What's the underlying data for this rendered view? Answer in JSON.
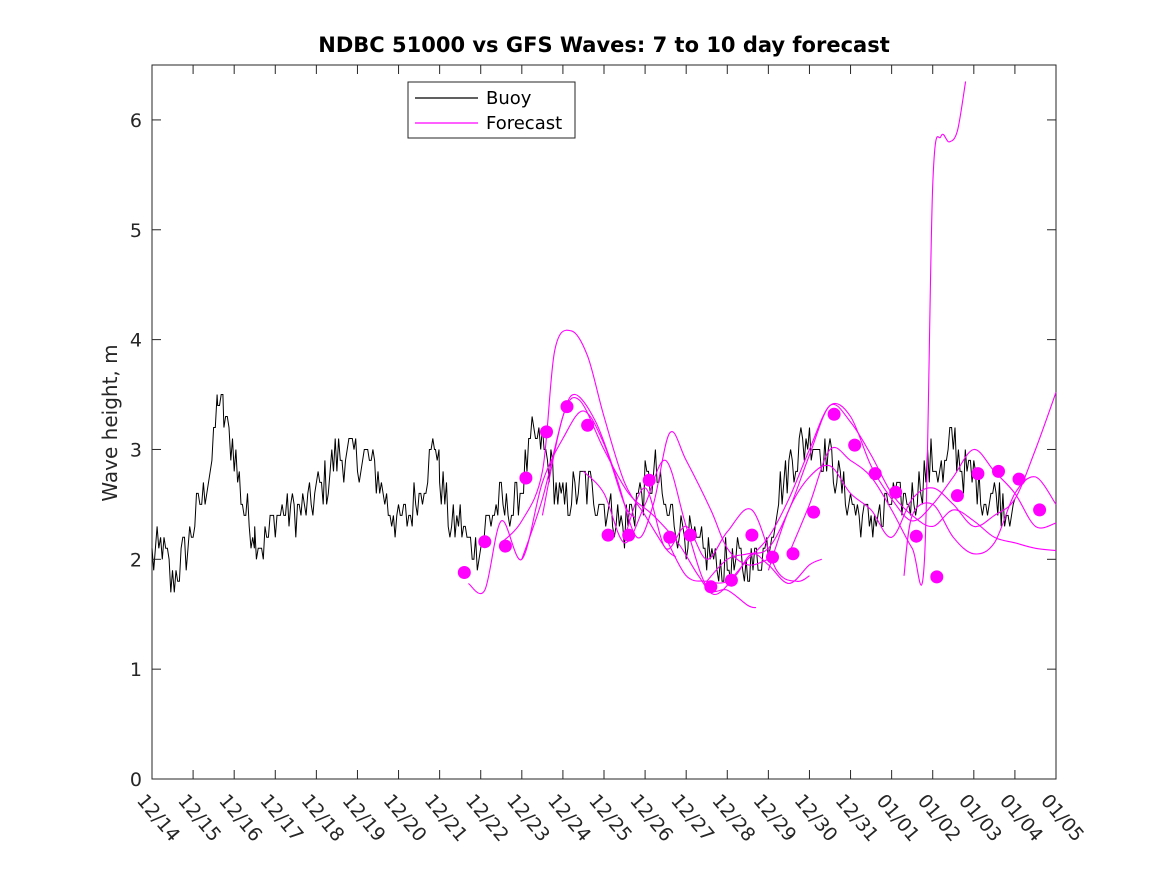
{
  "chart_data": {
    "type": "line",
    "title": "NDBC 51000 vs GFS Waves: 7 to 10 day forecast",
    "xlabel": "",
    "ylabel": "Wave height, m",
    "xlim": [
      0,
      22
    ],
    "ylim": [
      0,
      6.5
    ],
    "x_ticks": [
      0,
      1,
      2,
      3,
      4,
      5,
      6,
      7,
      8,
      9,
      10,
      11,
      12,
      13,
      14,
      15,
      16,
      17,
      18,
      19,
      20,
      21,
      22
    ],
    "x_tick_labels": [
      "12/14",
      "12/15",
      "12/16",
      "12/17",
      "12/18",
      "12/19",
      "12/20",
      "12/21",
      "12/22",
      "12/23",
      "12/24",
      "12/25",
      "12/26",
      "12/27",
      "12/28",
      "12/29",
      "12/30",
      "12/31",
      "01/01",
      "01/02",
      "01/03",
      "01/04",
      "01/05"
    ],
    "y_ticks": [
      0,
      1,
      2,
      3,
      4,
      5,
      6
    ],
    "y_tick_labels": [
      "0",
      "1",
      "2",
      "3",
      "4",
      "5",
      "6"
    ],
    "grid": false,
    "legend": {
      "position": "top-left-inside",
      "entries": [
        {
          "label": "Buoy",
          "color": "#000000"
        },
        {
          "label": "Forecast",
          "color": "#ff00ff"
        }
      ]
    },
    "colors": {
      "buoy": "#000000",
      "forecast": "#ff00ff"
    },
    "buoy_anchors": [
      [
        0,
        2.0
      ],
      [
        0.25,
        2.1
      ],
      [
        0.5,
        1.75
      ],
      [
        0.75,
        2.0
      ],
      [
        1.0,
        2.3
      ],
      [
        1.25,
        2.6
      ],
      [
        1.5,
        3.0
      ],
      [
        1.6,
        3.5
      ],
      [
        1.75,
        3.3
      ],
      [
        2.0,
        3.0
      ],
      [
        2.2,
        2.5
      ],
      [
        2.5,
        2.25
      ],
      [
        2.75,
        2.15
      ],
      [
        3.0,
        2.4
      ],
      [
        3.25,
        2.45
      ],
      [
        3.5,
        2.45
      ],
      [
        3.75,
        2.45
      ],
      [
        4.0,
        2.6
      ],
      [
        4.25,
        2.7
      ],
      [
        4.5,
        2.95
      ],
      [
        4.75,
        2.95
      ],
      [
        5.0,
        2.9
      ],
      [
        5.25,
        2.9
      ],
      [
        5.5,
        2.75
      ],
      [
        5.75,
        2.5
      ],
      [
        6.0,
        2.35
      ],
      [
        6.25,
        2.4
      ],
      [
        6.5,
        2.6
      ],
      [
        6.75,
        2.9
      ],
      [
        6.9,
        3.1
      ],
      [
        7.0,
        2.75
      ],
      [
        7.25,
        2.3
      ],
      [
        7.5,
        2.35
      ],
      [
        7.75,
        2.1
      ],
      [
        8.0,
        2.15
      ],
      [
        8.25,
        2.4
      ],
      [
        8.5,
        2.5
      ],
      [
        8.75,
        2.45
      ],
      [
        9.0,
        2.65
      ],
      [
        9.25,
        3.1
      ],
      [
        9.5,
        3.05
      ],
      [
        9.75,
        2.75
      ],
      [
        10.0,
        2.5
      ],
      [
        10.25,
        2.6
      ],
      [
        10.5,
        2.7
      ],
      [
        10.75,
        2.6
      ],
      [
        11.0,
        2.55
      ],
      [
        11.25,
        2.4
      ],
      [
        11.5,
        2.3
      ],
      [
        11.75,
        2.5
      ],
      [
        12.0,
        2.65
      ],
      [
        12.25,
        2.8
      ],
      [
        12.5,
        2.45
      ],
      [
        12.75,
        2.35
      ],
      [
        13.0,
        2.25
      ],
      [
        13.25,
        2.1
      ],
      [
        13.5,
        2.05
      ],
      [
        13.75,
        1.95
      ],
      [
        14.0,
        1.95
      ],
      [
        14.25,
        1.95
      ],
      [
        14.5,
        1.95
      ],
      [
        14.75,
        2.0
      ],
      [
        15.0,
        2.15
      ],
      [
        15.25,
        2.6
      ],
      [
        15.5,
        2.85
      ],
      [
        15.75,
        3.0
      ],
      [
        16.0,
        3.1
      ],
      [
        16.25,
        3.0
      ],
      [
        16.5,
        2.95
      ],
      [
        16.75,
        2.7
      ],
      [
        17.0,
        2.55
      ],
      [
        17.25,
        2.35
      ],
      [
        17.5,
        2.4
      ],
      [
        17.75,
        2.35
      ],
      [
        18.0,
        2.55
      ],
      [
        18.25,
        2.55
      ],
      [
        18.5,
        2.55
      ],
      [
        18.75,
        2.75
      ],
      [
        19.0,
        2.9
      ],
      [
        19.25,
        2.75
      ],
      [
        19.5,
        3.1
      ],
      [
        19.75,
        2.8
      ],
      [
        20.0,
        2.75
      ],
      [
        20.25,
        2.55
      ],
      [
        20.5,
        2.6
      ],
      [
        20.75,
        2.5
      ],
      [
        21.0,
        2.55
      ]
    ],
    "forecast_series": [
      {
        "points": [
          [
            7.7,
            1.78
          ],
          [
            8.1,
            1.72
          ],
          [
            8.5,
            2.35
          ],
          [
            9.0,
            2.0
          ],
          [
            9.5,
            2.7
          ],
          [
            10.0,
            3.1
          ],
          [
            10.5,
            3.35
          ],
          [
            11.0,
            3.05
          ],
          [
            11.5,
            2.5
          ],
          [
            11.75,
            2.38
          ]
        ]
      },
      {
        "points": [
          [
            8.5,
            2.15
          ],
          [
            9.0,
            2.35
          ],
          [
            9.5,
            2.8
          ],
          [
            9.8,
            3.9
          ],
          [
            10.2,
            4.08
          ],
          [
            10.6,
            3.85
          ],
          [
            11.0,
            3.3
          ],
          [
            11.5,
            2.7
          ],
          [
            12.0,
            2.4
          ],
          [
            12.5,
            2.1
          ],
          [
            12.75,
            2.02
          ]
        ]
      },
      {
        "points": [
          [
            9.0,
            2.0
          ],
          [
            9.5,
            2.55
          ],
          [
            10.0,
            3.3
          ],
          [
            10.3,
            3.5
          ],
          [
            10.8,
            3.25
          ],
          [
            11.3,
            2.75
          ],
          [
            11.8,
            2.2
          ],
          [
            12.2,
            2.5
          ],
          [
            12.6,
            3.15
          ],
          [
            13.0,
            2.9
          ],
          [
            13.6,
            2.45
          ],
          [
            14.0,
            2.1
          ],
          [
            14.5,
            1.95
          ],
          [
            15.0,
            2.0
          ]
        ]
      },
      {
        "points": [
          [
            9.5,
            2.4
          ],
          [
            10.0,
            3.3
          ],
          [
            10.4,
            3.45
          ],
          [
            11.0,
            3.0
          ],
          [
            11.6,
            2.6
          ],
          [
            12.2,
            2.4
          ],
          [
            12.8,
            2.15
          ],
          [
            13.3,
            1.85
          ],
          [
            13.7,
            1.68
          ],
          [
            14.2,
            1.85
          ],
          [
            14.6,
            2.05
          ],
          [
            15.0,
            1.95
          ],
          [
            15.5,
            1.78
          ],
          [
            16.0,
            1.95
          ],
          [
            16.3,
            2.0
          ]
        ]
      },
      {
        "points": [
          [
            10.5,
            2.8
          ],
          [
            11.0,
            2.6
          ],
          [
            11.5,
            2.15
          ],
          [
            12.0,
            2.5
          ],
          [
            12.5,
            2.9
          ],
          [
            13.0,
            2.3
          ],
          [
            13.5,
            1.75
          ],
          [
            14.0,
            1.72
          ],
          [
            14.5,
            1.58
          ],
          [
            14.7,
            1.56
          ]
        ]
      },
      {
        "points": [
          [
            11.5,
            2.2
          ],
          [
            12.0,
            2.65
          ],
          [
            12.5,
            2.1
          ],
          [
            13.0,
            2.3
          ],
          [
            13.5,
            2.0
          ],
          [
            14.0,
            2.25
          ],
          [
            14.6,
            2.45
          ],
          [
            15.2,
            1.9
          ],
          [
            15.7,
            1.8
          ],
          [
            16.0,
            1.85
          ]
        ]
      },
      {
        "points": [
          [
            12.5,
            2.2
          ],
          [
            13.0,
            1.85
          ],
          [
            13.5,
            1.8
          ],
          [
            14.0,
            1.8
          ],
          [
            14.5,
            2.0
          ],
          [
            15.0,
            2.2
          ],
          [
            15.5,
            2.55
          ],
          [
            16.0,
            3.0
          ],
          [
            16.5,
            3.4
          ],
          [
            17.0,
            3.3
          ],
          [
            17.5,
            2.85
          ],
          [
            18.0,
            2.55
          ],
          [
            18.5,
            2.35
          ],
          [
            19.0,
            2.5
          ],
          [
            19.5,
            2.75
          ],
          [
            20.0,
            3.0
          ],
          [
            20.5,
            2.8
          ],
          [
            21.0,
            2.6
          ],
          [
            21.5,
            2.3
          ],
          [
            22.0,
            2.33
          ]
        ]
      },
      {
        "points": [
          [
            13.5,
            1.8
          ],
          [
            14.0,
            2.0
          ],
          [
            14.5,
            2.05
          ],
          [
            15.0,
            2.1
          ],
          [
            15.5,
            2.45
          ],
          [
            16.0,
            2.95
          ],
          [
            16.5,
            3.4
          ],
          [
            17.0,
            3.25
          ],
          [
            17.5,
            2.95
          ],
          [
            18.0,
            2.6
          ],
          [
            18.5,
            2.4
          ],
          [
            19.0,
            2.3
          ],
          [
            19.5,
            2.45
          ],
          [
            20.0,
            2.35
          ],
          [
            20.5,
            2.2
          ],
          [
            21.0,
            2.15
          ],
          [
            21.5,
            2.1
          ],
          [
            22.0,
            2.08
          ]
        ]
      },
      {
        "points": [
          [
            15.0,
            1.9
          ],
          [
            15.5,
            2.45
          ],
          [
            16.0,
            2.75
          ],
          [
            16.5,
            2.85
          ],
          [
            17.0,
            2.6
          ],
          [
            17.5,
            2.45
          ],
          [
            18.0,
            2.2
          ],
          [
            18.5,
            2.55
          ],
          [
            19.0,
            2.65
          ],
          [
            19.5,
            2.5
          ],
          [
            20.0,
            2.3
          ],
          [
            20.5,
            2.4
          ],
          [
            21.0,
            2.55
          ],
          [
            21.5,
            3.0
          ],
          [
            22.0,
            3.52
          ]
        ]
      },
      {
        "points": [
          [
            15.5,
            2.05
          ],
          [
            16.0,
            2.5
          ],
          [
            16.5,
            3.0
          ],
          [
            17.0,
            2.9
          ],
          [
            17.5,
            2.75
          ],
          [
            18.0,
            2.45
          ],
          [
            18.5,
            2.1
          ],
          [
            18.8,
            2.0
          ],
          [
            19.0,
            5.4
          ],
          [
            19.2,
            5.85
          ],
          [
            19.4,
            5.8
          ],
          [
            19.6,
            5.9
          ],
          [
            19.8,
            6.35
          ]
        ]
      },
      {
        "points": [
          [
            18.3,
            1.85
          ],
          [
            18.5,
            2.4
          ],
          [
            19.0,
            2.5
          ],
          [
            19.5,
            2.2
          ],
          [
            20.0,
            2.05
          ],
          [
            20.5,
            2.15
          ],
          [
            21.0,
            2.6
          ],
          [
            21.5,
            2.75
          ],
          [
            22.0,
            2.5
          ]
        ]
      }
    ],
    "forecast_markers": [
      [
        7.6,
        1.88
      ],
      [
        8.1,
        2.16
      ],
      [
        8.6,
        2.12
      ],
      [
        9.1,
        2.74
      ],
      [
        9.6,
        3.16
      ],
      [
        10.1,
        3.39
      ],
      [
        10.6,
        3.22
      ],
      [
        11.1,
        2.22
      ],
      [
        11.6,
        2.22
      ],
      [
        12.1,
        2.72
      ],
      [
        12.6,
        2.2
      ],
      [
        13.1,
        2.22
      ],
      [
        13.6,
        1.75
      ],
      [
        14.1,
        1.81
      ],
      [
        14.6,
        2.22
      ],
      [
        15.1,
        2.02
      ],
      [
        15.6,
        2.05
      ],
      [
        16.1,
        2.43
      ],
      [
        16.6,
        3.32
      ],
      [
        17.1,
        3.04
      ],
      [
        17.6,
        2.78
      ],
      [
        18.1,
        2.61
      ],
      [
        18.6,
        2.21
      ],
      [
        19.1,
        1.84
      ],
      [
        19.6,
        2.58
      ],
      [
        20.1,
        2.78
      ],
      [
        20.6,
        2.8
      ],
      [
        21.1,
        2.73
      ],
      [
        21.6,
        2.45
      ]
    ]
  }
}
